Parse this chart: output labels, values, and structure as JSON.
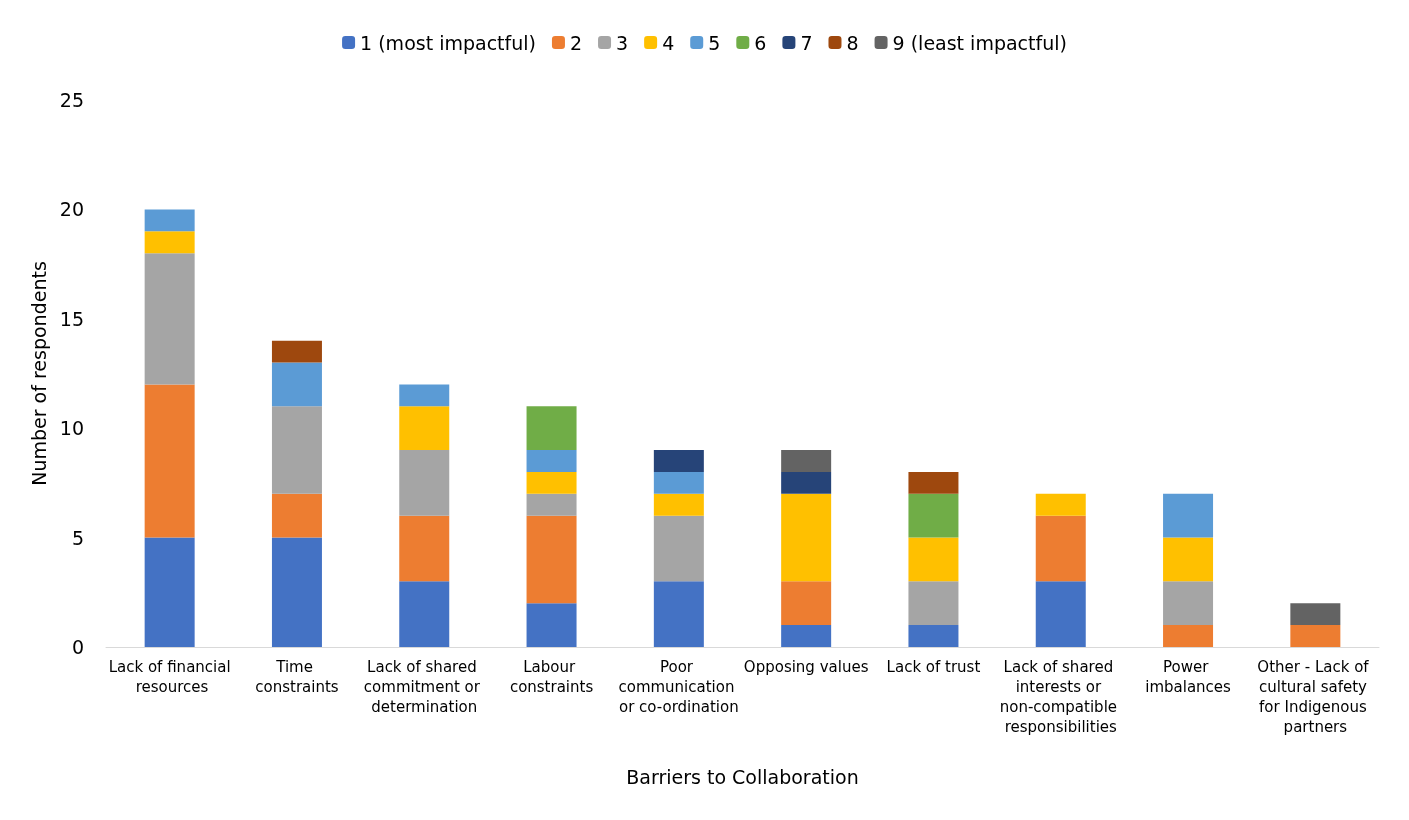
{
  "chart_data": {
    "type": "bar",
    "stacked": true,
    "xlabel": "Barriers to Collaboration",
    "ylabel": "Number of respondents",
    "categories": [
      "Lack of financial resources",
      "Time constraints",
      "Lack of shared commitment or determination",
      "Labour constraints",
      "Poor communication or co-ordination",
      "Opposing values",
      "Lack of trust",
      "Lack of shared interests or non-compatible responsibilities",
      "Power imbalances",
      "Other - Lack of cultural safety for Indigenous partners"
    ],
    "series": [
      {
        "name": "1 (most impactful)",
        "color": "#4472c4",
        "values": [
          5,
          5,
          3,
          2,
          3,
          1,
          1,
          3,
          0,
          0
        ]
      },
      {
        "name": "2",
        "color": "#ed7d31",
        "values": [
          7,
          2,
          3,
          4,
          0,
          2,
          0,
          3,
          1,
          1
        ]
      },
      {
        "name": "3",
        "color": "#a5a5a5",
        "values": [
          6,
          4,
          3,
          1,
          3,
          0,
          2,
          0,
          2,
          0
        ]
      },
      {
        "name": "4",
        "color": "#ffc000",
        "values": [
          1,
          0,
          2,
          1,
          1,
          4,
          2,
          1,
          2,
          0
        ]
      },
      {
        "name": "5",
        "color": "#5b9bd5",
        "values": [
          1,
          2,
          1,
          1,
          1,
          0,
          0,
          0,
          2,
          0
        ]
      },
      {
        "name": "6",
        "color": "#70ad47",
        "values": [
          0,
          0,
          0,
          2,
          0,
          0,
          2,
          0,
          0,
          0
        ]
      },
      {
        "name": "7",
        "color": "#264478",
        "values": [
          0,
          0,
          0,
          0,
          1,
          1,
          0,
          0,
          0,
          0
        ]
      },
      {
        "name": "8",
        "color": "#9e480e",
        "values": [
          0,
          1,
          0,
          0,
          0,
          0,
          1,
          0,
          0,
          0
        ]
      },
      {
        "name": "9 (least impactful)",
        "color": "#636363",
        "values": [
          0,
          0,
          0,
          0,
          0,
          1,
          0,
          0,
          0,
          1
        ]
      }
    ],
    "ylim": [
      0,
      25
    ],
    "yticks": [
      0,
      5,
      10,
      15,
      20,
      25
    ],
    "grid": false,
    "legend": "top"
  }
}
